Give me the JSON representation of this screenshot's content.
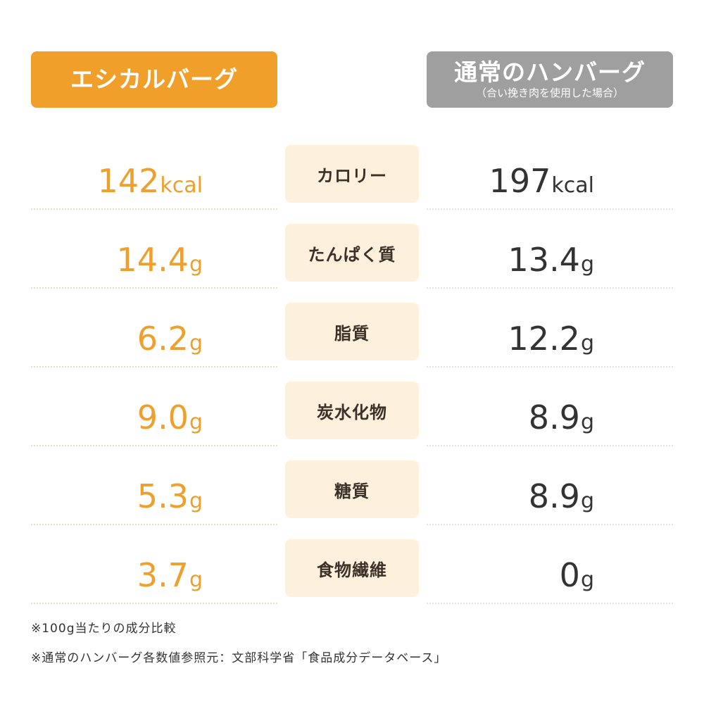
{
  "header": {
    "left_title": "エシカルバーグ",
    "right_title": "通常のハンバーグ",
    "right_subtitle": "（合い挽き肉を使用した場合）"
  },
  "colors": {
    "accent_orange": "#f0a02a",
    "header_gray": "#9f9f9f",
    "label_bg": "#fdf0dd",
    "right_text": "#333333"
  },
  "chart_data": {
    "type": "table",
    "columns": [
      "エシカルバーグ",
      "",
      "通常のハンバーグ"
    ],
    "rows": [
      {
        "label": "カロリー",
        "left": {
          "num": "142",
          "unit": "kcal"
        },
        "right": {
          "num": "197",
          "unit": "kcal"
        }
      },
      {
        "label": "たんぱく質",
        "left": {
          "num": "14.4",
          "unit": "g"
        },
        "right": {
          "num": "13.4",
          "unit": "g"
        }
      },
      {
        "label": "脂質",
        "left": {
          "num": "6.2",
          "unit": "g"
        },
        "right": {
          "num": "12.2",
          "unit": "g"
        }
      },
      {
        "label": "炭水化物",
        "left": {
          "num": "9.0",
          "unit": "g"
        },
        "right": {
          "num": "8.9",
          "unit": "g"
        }
      },
      {
        "label": "糖質",
        "left": {
          "num": "5.3",
          "unit": "g"
        },
        "right": {
          "num": "8.9",
          "unit": "g"
        }
      },
      {
        "label": "食物繊維",
        "left": {
          "num": "3.7",
          "unit": "g"
        },
        "right": {
          "num": "0",
          "unit": "g"
        }
      }
    ]
  },
  "footnotes": [
    "※100g当たりの成分比較",
    "※通常のハンバーグ各数値参照元：文部科学省「食品成分データベース」"
  ]
}
